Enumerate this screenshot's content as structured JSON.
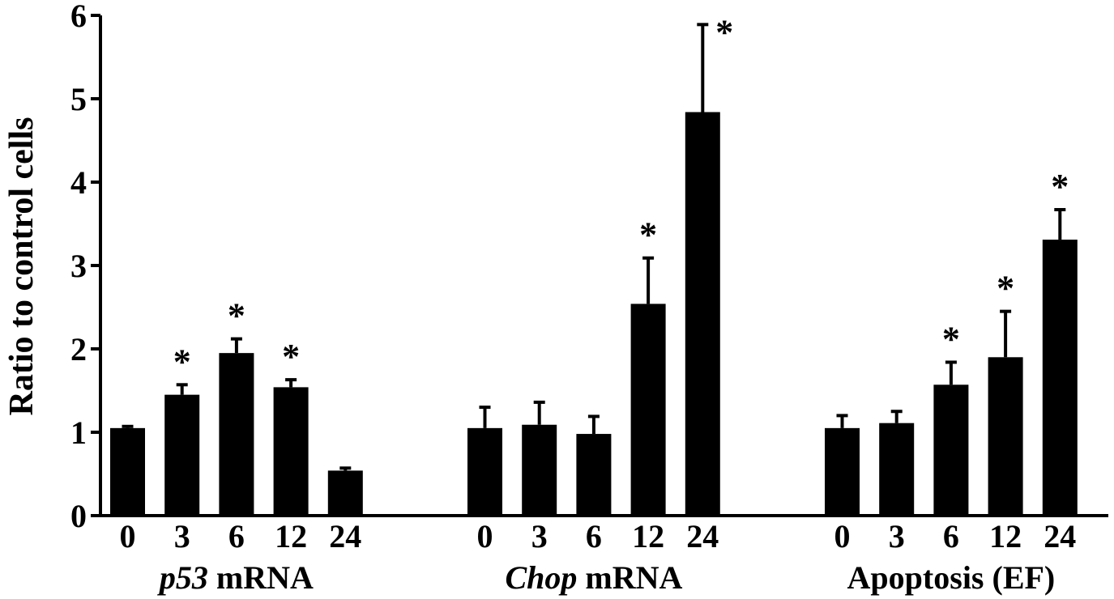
{
  "chart_data": {
    "type": "bar",
    "title": "",
    "ylabel": "Ratio to control cells",
    "ylim": [
      0,
      6
    ],
    "yticks": [
      "0",
      "1",
      "2",
      "3",
      "4",
      "5",
      "6"
    ],
    "grid": false,
    "bar_color": "#000000",
    "groups": [
      {
        "label_italic": "p53",
        "label_rest": " mRNA",
        "categories": [
          "0",
          "3",
          "6",
          "12",
          "24"
        ],
        "values": [
          1.05,
          1.45,
          1.95,
          1.54,
          0.54
        ],
        "errors": [
          0.02,
          0.12,
          0.17,
          0.09,
          0.03
        ],
        "significant": [
          false,
          true,
          true,
          true,
          false
        ]
      },
      {
        "label_italic": "Chop",
        "label_rest": " mRNA",
        "categories": [
          "0",
          "3",
          "6",
          "12",
          "24"
        ],
        "values": [
          1.05,
          1.09,
          0.98,
          2.54,
          4.84
        ],
        "errors": [
          0.25,
          0.27,
          0.21,
          0.55,
          1.05
        ],
        "significant": [
          false,
          false,
          false,
          true,
          true
        ]
      },
      {
        "label_italic": "",
        "label_rest": "Apoptosis (EF)",
        "categories": [
          "0",
          "3",
          "6",
          "12",
          "24"
        ],
        "values": [
          1.05,
          1.11,
          1.57,
          1.9,
          3.31
        ],
        "errors": [
          0.15,
          0.14,
          0.27,
          0.55,
          0.36
        ],
        "significant": [
          false,
          false,
          true,
          true,
          true
        ]
      }
    ],
    "significance_marker": "*"
  }
}
